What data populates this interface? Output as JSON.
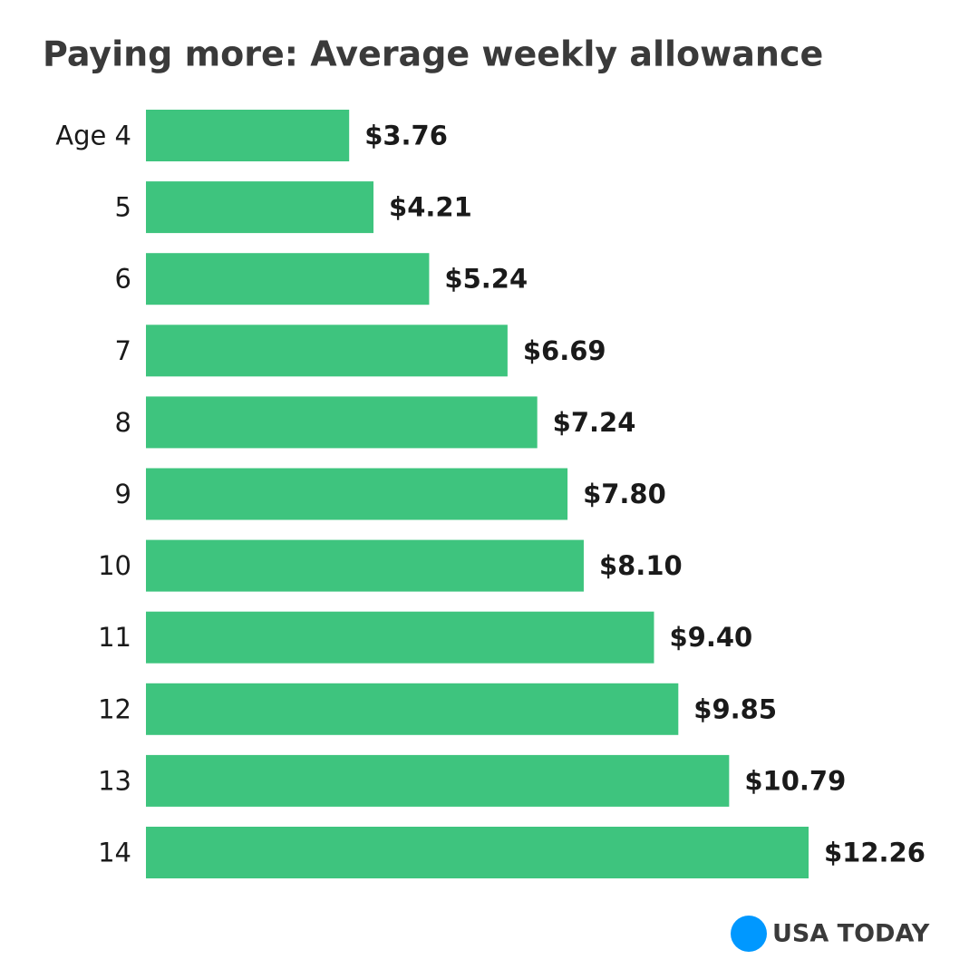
{
  "chart_data": {
    "type": "bar",
    "orientation": "horizontal",
    "title": "Paying more: Average weekly allowance",
    "categories": [
      "Age 4",
      "5",
      "6",
      "7",
      "8",
      "9",
      "10",
      "11",
      "12",
      "13",
      "14"
    ],
    "values": [
      3.76,
      4.21,
      5.24,
      6.69,
      7.24,
      7.8,
      8.1,
      9.4,
      9.85,
      10.79,
      12.26
    ],
    "value_labels": [
      "$3.76",
      "$4.21",
      "$5.24",
      "$6.69",
      "$7.24",
      "$7.80",
      "$8.10",
      "$9.40",
      "$9.85",
      "$10.79",
      "$12.26"
    ],
    "color": "#3ec47e",
    "logo": "USA TODAY",
    "logo_color": "#0098ff"
  }
}
